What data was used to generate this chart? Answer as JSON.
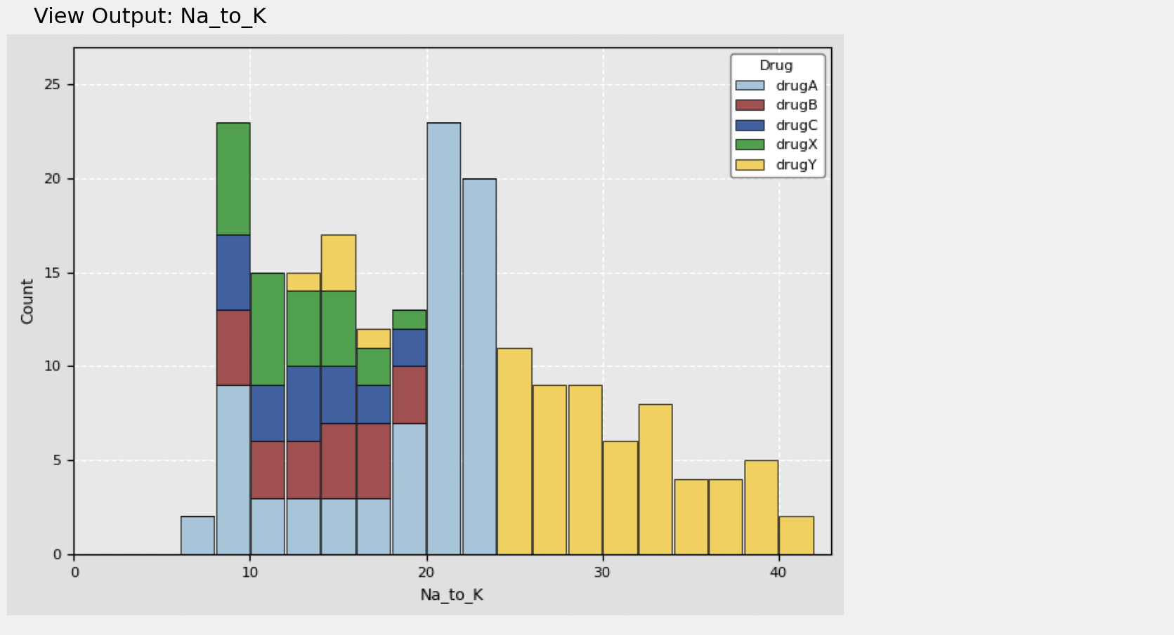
{
  "title": "Na_to_K",
  "xlabel": "Na_to_K",
  "ylabel": "Count",
  "legend_title": "Drug",
  "legend_labels": [
    "drugA",
    "drugB",
    "drugC",
    "drugX",
    "drugY"
  ],
  "colors": [
    "#a8c4d8",
    "#a05050",
    "#4060a0",
    "#50a050",
    "#f0d060"
  ],
  "bin_edges": [
    6,
    8,
    10,
    12,
    14,
    16,
    18,
    20,
    22,
    24,
    26,
    28,
    30,
    32,
    34,
    36,
    38,
    40,
    42
  ],
  "stacked_counts": [
    [
      2,
      0,
      0,
      0,
      0
    ],
    [
      9,
      4,
      4,
      6,
      0
    ],
    [
      3,
      3,
      3,
      6,
      0
    ],
    [
      3,
      3,
      4,
      4,
      1
    ],
    [
      3,
      4,
      3,
      4,
      3
    ],
    [
      3,
      4,
      2,
      2,
      1
    ],
    [
      7,
      3,
      2,
      1,
      0
    ],
    [
      23,
      0,
      0,
      0,
      0
    ],
    [
      20,
      0,
      0,
      0,
      0
    ],
    [
      0,
      0,
      0,
      0,
      11
    ],
    [
      0,
      0,
      0,
      0,
      9
    ],
    [
      0,
      0,
      0,
      0,
      9
    ],
    [
      0,
      0,
      0,
      0,
      6
    ],
    [
      0,
      0,
      0,
      0,
      8
    ],
    [
      0,
      0,
      0,
      0,
      4
    ],
    [
      0,
      0,
      0,
      0,
      4
    ],
    [
      0,
      0,
      0,
      0,
      5
    ],
    [
      0,
      0,
      0,
      0,
      2
    ]
  ],
  "xlim": [
    5,
    43
  ],
  "ylim": [
    0,
    27
  ],
  "yticks": [
    0,
    5,
    10,
    15,
    20,
    25
  ],
  "xticks": [
    0,
    10,
    20,
    30,
    40
  ],
  "background_color": "#e8e8e8",
  "plot_bg_color": "#e8e8e8",
  "grid_color": "white",
  "figsize": [
    6.5,
    4.5
  ]
}
